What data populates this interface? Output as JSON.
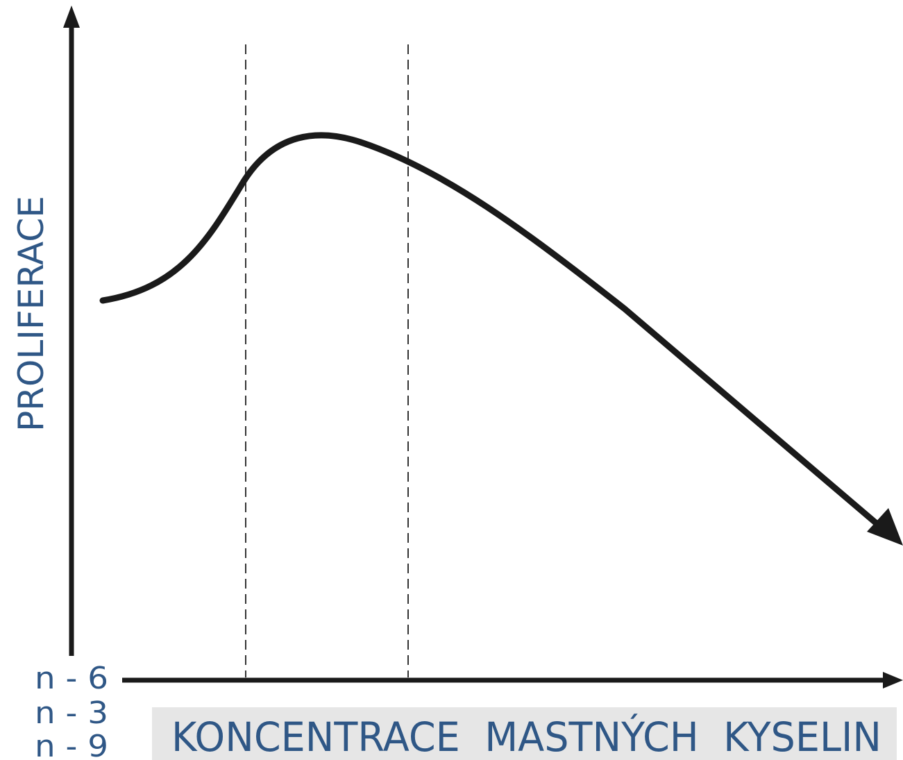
{
  "diagram": {
    "y_axis_label": "PROLIFERACE",
    "x_axis_label": "KONCENTRACE  MASTNÝCH  KYSELIN",
    "series_labels": [
      "n - 6",
      "n - 3",
      "n - 9"
    ],
    "colors": {
      "label_text": "#2f5786",
      "label_background": "#e6e6e6",
      "axis": "#1a1a1a",
      "curve": "#1a1a1a",
      "dashed_line": "#333333"
    }
  }
}
